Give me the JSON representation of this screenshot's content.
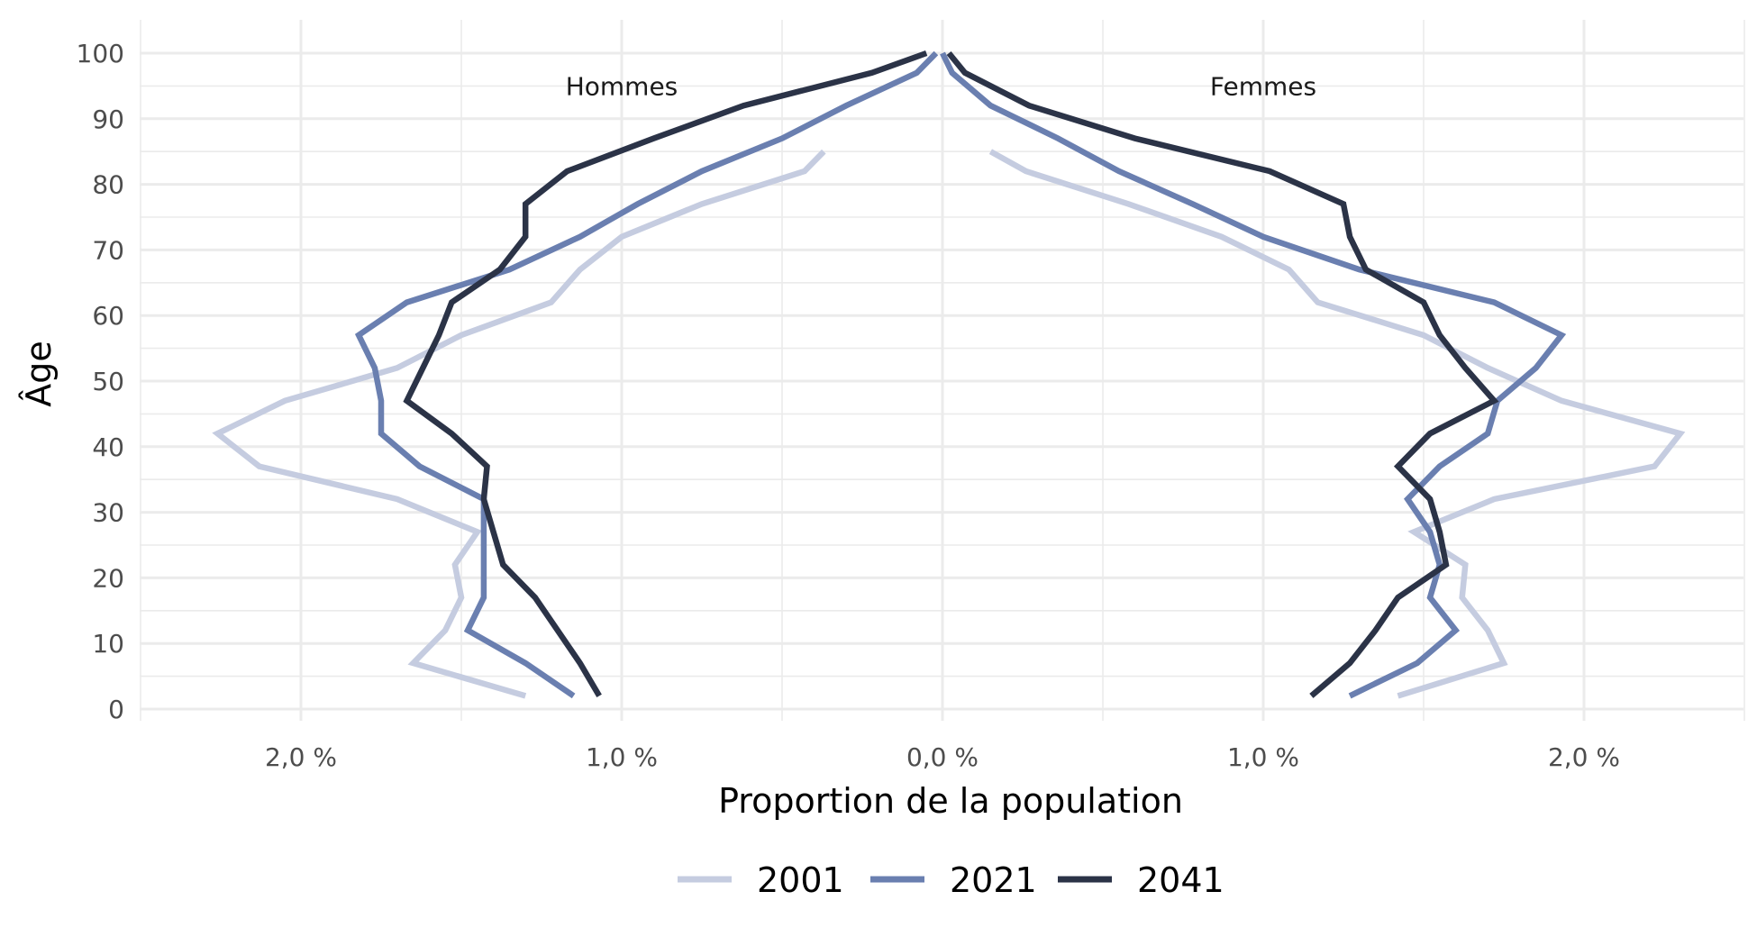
{
  "chart_data": {
    "type": "line",
    "xlabel": "Proportion de la population",
    "ylabel": "Âge",
    "xlim": [
      -2.5,
      2.5
    ],
    "ylim": [
      0,
      100
    ],
    "x_ticks": [
      -2.0,
      -1.0,
      0.0,
      1.0,
      2.0
    ],
    "x_tick_labels": [
      "2,0 %",
      "1,0 %",
      "0,0 %",
      "1,0 %",
      "2,0 %"
    ],
    "y_ticks": [
      0,
      10,
      20,
      30,
      40,
      50,
      60,
      70,
      80,
      90,
      100
    ],
    "y_tick_labels": [
      "0",
      "10",
      "20",
      "30",
      "40",
      "50",
      "60",
      "70",
      "80",
      "90",
      "100"
    ],
    "grid": true,
    "legend_position": "bottom",
    "annotations": [
      {
        "text": "Hommes",
        "x": -1.0,
        "y": 95
      },
      {
        "text": "Femmes",
        "x": 1.0,
        "y": 95
      }
    ],
    "series": [
      {
        "name": "2001",
        "color": "#c5cce0",
        "hommes": [
          {
            "age": 2,
            "x": -1.3
          },
          {
            "age": 7,
            "x": -1.65
          },
          {
            "age": 12,
            "x": -1.55
          },
          {
            "age": 17,
            "x": -1.5
          },
          {
            "age": 22,
            "x": -1.52
          },
          {
            "age": 27,
            "x": -1.45
          },
          {
            "age": 32,
            "x": -1.7
          },
          {
            "age": 37,
            "x": -2.13
          },
          {
            "age": 42,
            "x": -2.26
          },
          {
            "age": 47,
            "x": -2.05
          },
          {
            "age": 52,
            "x": -1.7
          },
          {
            "age": 57,
            "x": -1.5
          },
          {
            "age": 62,
            "x": -1.22
          },
          {
            "age": 67,
            "x": -1.13
          },
          {
            "age": 72,
            "x": -1.0
          },
          {
            "age": 77,
            "x": -0.75
          },
          {
            "age": 82,
            "x": -0.43
          },
          {
            "age": 85,
            "x": -0.37
          }
        ],
        "femmes": [
          {
            "age": 2,
            "x": 1.42
          },
          {
            "age": 7,
            "x": 1.75
          },
          {
            "age": 12,
            "x": 1.7
          },
          {
            "age": 17,
            "x": 1.62
          },
          {
            "age": 22,
            "x": 1.63
          },
          {
            "age": 27,
            "x": 1.47
          },
          {
            "age": 32,
            "x": 1.72
          },
          {
            "age": 37,
            "x": 2.22
          },
          {
            "age": 42,
            "x": 2.3
          },
          {
            "age": 47,
            "x": 1.93
          },
          {
            "age": 52,
            "x": 1.7
          },
          {
            "age": 57,
            "x": 1.5
          },
          {
            "age": 62,
            "x": 1.17
          },
          {
            "age": 67,
            "x": 1.08
          },
          {
            "age": 72,
            "x": 0.87
          },
          {
            "age": 77,
            "x": 0.58
          },
          {
            "age": 82,
            "x": 0.26
          },
          {
            "age": 85,
            "x": 0.15
          }
        ]
      },
      {
        "name": "2021",
        "color": "#6a7fb0",
        "hommes": [
          {
            "age": 2,
            "x": -1.15
          },
          {
            "age": 7,
            "x": -1.3
          },
          {
            "age": 12,
            "x": -1.48
          },
          {
            "age": 17,
            "x": -1.43
          },
          {
            "age": 22,
            "x": -1.43
          },
          {
            "age": 27,
            "x": -1.43
          },
          {
            "age": 32,
            "x": -1.43
          },
          {
            "age": 37,
            "x": -1.63
          },
          {
            "age": 42,
            "x": -1.75
          },
          {
            "age": 47,
            "x": -1.75
          },
          {
            "age": 52,
            "x": -1.77
          },
          {
            "age": 57,
            "x": -1.82
          },
          {
            "age": 62,
            "x": -1.67
          },
          {
            "age": 67,
            "x": -1.35
          },
          {
            "age": 72,
            "x": -1.13
          },
          {
            "age": 77,
            "x": -0.95
          },
          {
            "age": 82,
            "x": -0.75
          },
          {
            "age": 87,
            "x": -0.5
          },
          {
            "age": 92,
            "x": -0.3
          },
          {
            "age": 97,
            "x": -0.08
          },
          {
            "age": 100,
            "x": -0.02
          }
        ],
        "femmes": [
          {
            "age": 2,
            "x": 1.27
          },
          {
            "age": 7,
            "x": 1.48
          },
          {
            "age": 12,
            "x": 1.6
          },
          {
            "age": 17,
            "x": 1.52
          },
          {
            "age": 22,
            "x": 1.55
          },
          {
            "age": 27,
            "x": 1.52
          },
          {
            "age": 32,
            "x": 1.45
          },
          {
            "age": 37,
            "x": 1.55
          },
          {
            "age": 42,
            "x": 1.7
          },
          {
            "age": 47,
            "x": 1.73
          },
          {
            "age": 52,
            "x": 1.85
          },
          {
            "age": 57,
            "x": 1.93
          },
          {
            "age": 62,
            "x": 1.72
          },
          {
            "age": 67,
            "x": 1.3
          },
          {
            "age": 72,
            "x": 1.0
          },
          {
            "age": 77,
            "x": 0.78
          },
          {
            "age": 82,
            "x": 0.55
          },
          {
            "age": 87,
            "x": 0.36
          },
          {
            "age": 92,
            "x": 0.15
          },
          {
            "age": 97,
            "x": 0.03
          },
          {
            "age": 100,
            "x": 0.0
          }
        ]
      },
      {
        "name": "2041",
        "color": "#2b3347",
        "hommes": [
          {
            "age": 2,
            "x": -1.07
          },
          {
            "age": 7,
            "x": -1.13
          },
          {
            "age": 12,
            "x": -1.2
          },
          {
            "age": 17,
            "x": -1.27
          },
          {
            "age": 22,
            "x": -1.37
          },
          {
            "age": 27,
            "x": -1.4
          },
          {
            "age": 32,
            "x": -1.43
          },
          {
            "age": 37,
            "x": -1.42
          },
          {
            "age": 42,
            "x": -1.53
          },
          {
            "age": 47,
            "x": -1.67
          },
          {
            "age": 52,
            "x": -1.62
          },
          {
            "age": 57,
            "x": -1.57
          },
          {
            "age": 62,
            "x": -1.53
          },
          {
            "age": 67,
            "x": -1.38
          },
          {
            "age": 72,
            "x": -1.3
          },
          {
            "age": 77,
            "x": -1.3
          },
          {
            "age": 82,
            "x": -1.17
          },
          {
            "age": 87,
            "x": -0.9
          },
          {
            "age": 92,
            "x": -0.62
          },
          {
            "age": 97,
            "x": -0.22
          },
          {
            "age": 100,
            "x": -0.05
          }
        ],
        "femmes": [
          {
            "age": 2,
            "x": 1.15
          },
          {
            "age": 7,
            "x": 1.27
          },
          {
            "age": 12,
            "x": 1.35
          },
          {
            "age": 17,
            "x": 1.42
          },
          {
            "age": 22,
            "x": 1.57
          },
          {
            "age": 27,
            "x": 1.55
          },
          {
            "age": 32,
            "x": 1.52
          },
          {
            "age": 37,
            "x": 1.42
          },
          {
            "age": 42,
            "x": 1.52
          },
          {
            "age": 47,
            "x": 1.72
          },
          {
            "age": 52,
            "x": 1.63
          },
          {
            "age": 57,
            "x": 1.55
          },
          {
            "age": 62,
            "x": 1.5
          },
          {
            "age": 67,
            "x": 1.32
          },
          {
            "age": 72,
            "x": 1.27
          },
          {
            "age": 77,
            "x": 1.25
          },
          {
            "age": 82,
            "x": 1.02
          },
          {
            "age": 87,
            "x": 0.6
          },
          {
            "age": 92,
            "x": 0.27
          },
          {
            "age": 97,
            "x": 0.07
          },
          {
            "age": 100,
            "x": 0.02
          }
        ]
      }
    ]
  }
}
